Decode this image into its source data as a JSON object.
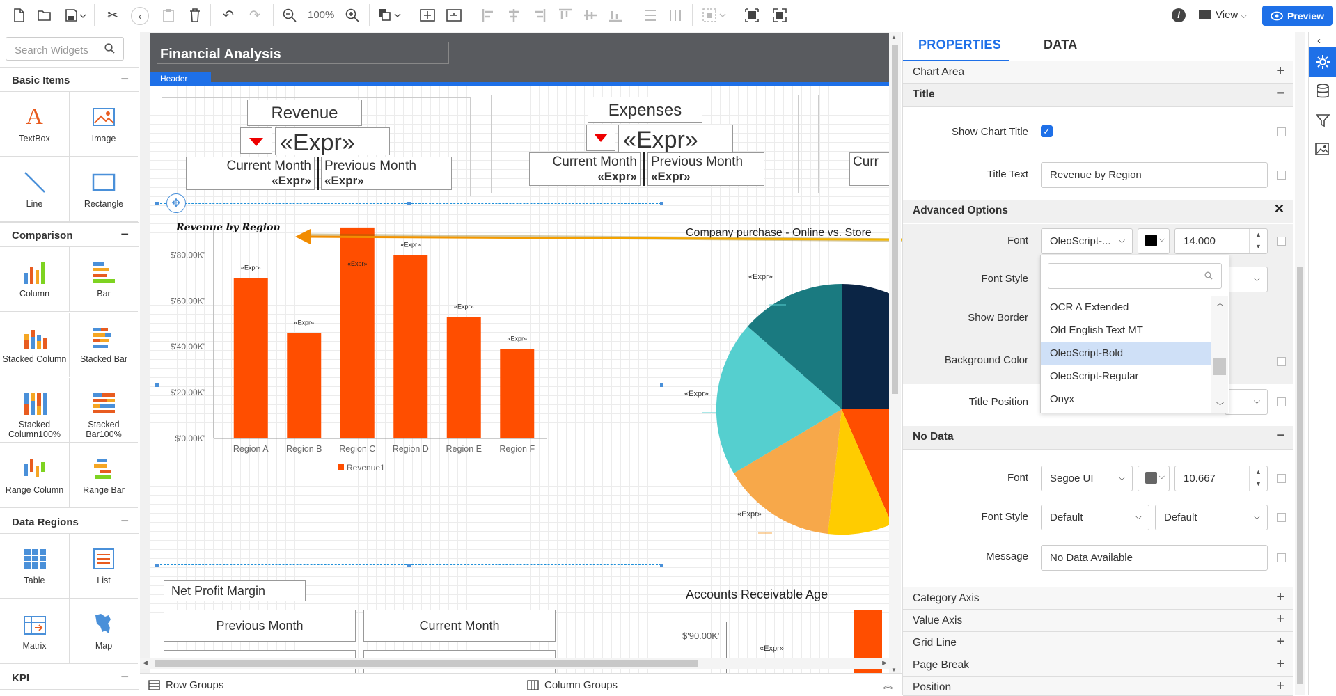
{
  "toolbar": {
    "zoom": "100%",
    "view_label": "View",
    "preview_label": "Preview"
  },
  "left": {
    "search_placeholder": "Search Widgets",
    "sections": {
      "basic": "Basic Items",
      "comparison": "Comparison",
      "data_regions": "Data Regions",
      "kpi": "KPI"
    },
    "basic_items": [
      "TextBox",
      "Image",
      "Line",
      "Rectangle"
    ],
    "comparison_items": [
      "Column",
      "Bar",
      "Stacked Column",
      "Stacked Bar",
      "Stacked Column100%",
      "Stacked Bar100%",
      "Range Column",
      "Range Bar"
    ],
    "data_region_items": [
      "Table",
      "List",
      "Matrix",
      "Map"
    ]
  },
  "report": {
    "header_title": "Financial Analysis",
    "header_tag": "Header",
    "kpi1": {
      "title": "Revenue",
      "expr": "«Expr»",
      "col1": "Current Month",
      "col2": "Previous Month",
      "v1": "«Expr»",
      "v2": "«Expr»"
    },
    "kpi2": {
      "title": "Expenses",
      "expr": "«Expr»",
      "col1": "Current Month",
      "col2": "Previous Month",
      "v1": "«Expr»",
      "v2": "«Expr»"
    },
    "kpi3": {
      "col1": "Curr"
    },
    "pie_title": "Company purchase - Online vs. Store",
    "pie_labels": [
      "«Expr»",
      "«Expr»",
      "«Expr»"
    ],
    "net_profit": {
      "title": "Net Profit Margin",
      "col1": "Previous Month",
      "col2": "Current Month"
    },
    "ar_age": {
      "title": "Accounts Receivable Age",
      "y_tick": "$'90.00K'",
      "label": "«Expr»"
    }
  },
  "chart_data": {
    "type": "bar",
    "title": "Revenue by Region",
    "categories": [
      "Region A",
      "Region B",
      "Region C",
      "Region D",
      "Region E",
      "Region F"
    ],
    "series": [
      {
        "name": "Revenue1",
        "values": [
          70000,
          46000,
          92000,
          80000,
          53000,
          39000
        ]
      }
    ],
    "data_labels": [
      "«Expr»",
      "«Expr»",
      "«Expr»",
      "«Expr»",
      "«Expr»",
      "«Expr»"
    ],
    "y_ticks": [
      "$'0.00K'",
      "$'20.00K'",
      "$'40.00K'",
      "$'60.00K'",
      "$'80.00K'"
    ],
    "ylim": [
      0,
      95000
    ],
    "bar_color": "#ff4e00"
  },
  "bottom": {
    "row_groups": "Row Groups",
    "column_groups": "Column Groups"
  },
  "props": {
    "tab_properties": "PROPERTIES",
    "tab_data": "DATA",
    "chart_area": "Chart Area",
    "title_section": "Title",
    "show_chart_title_label": "Show Chart Title",
    "title_text_label": "Title Text",
    "title_text_value": "Revenue by Region",
    "advanced_options": "Advanced Options",
    "font_label": "Font",
    "font_value": "OleoScript-...",
    "font_size": "14.000",
    "font_style_label": "Font Style",
    "show_border_label": "Show Border",
    "bg_color_label": "Background Color",
    "title_position_label": "Title Position",
    "font_options": [
      "OCR A Extended",
      "Old English Text MT",
      "OleoScript-Bold",
      "OleoScript-Regular",
      "Onyx"
    ],
    "font_selected": "OleoScript-Bold",
    "no_data": "No Data",
    "nd_font_value": "Segoe UI",
    "nd_font_size": "10.667",
    "nd_style1": "Default",
    "nd_style2": "Default",
    "message_label": "Message",
    "message_value": "No Data Available",
    "category_axis": "Category Axis",
    "value_axis": "Value Axis",
    "grid_line": "Grid Line",
    "page_break": "Page Break",
    "position": "Position"
  },
  "colors": {
    "accent": "#1e70e8",
    "bar": "#ff4e00",
    "pie": [
      "#0a2a4a",
      "#1a7a80",
      "#55cfcf",
      "#f7a84a",
      "#ffcc00",
      "#ff4e00"
    ]
  }
}
